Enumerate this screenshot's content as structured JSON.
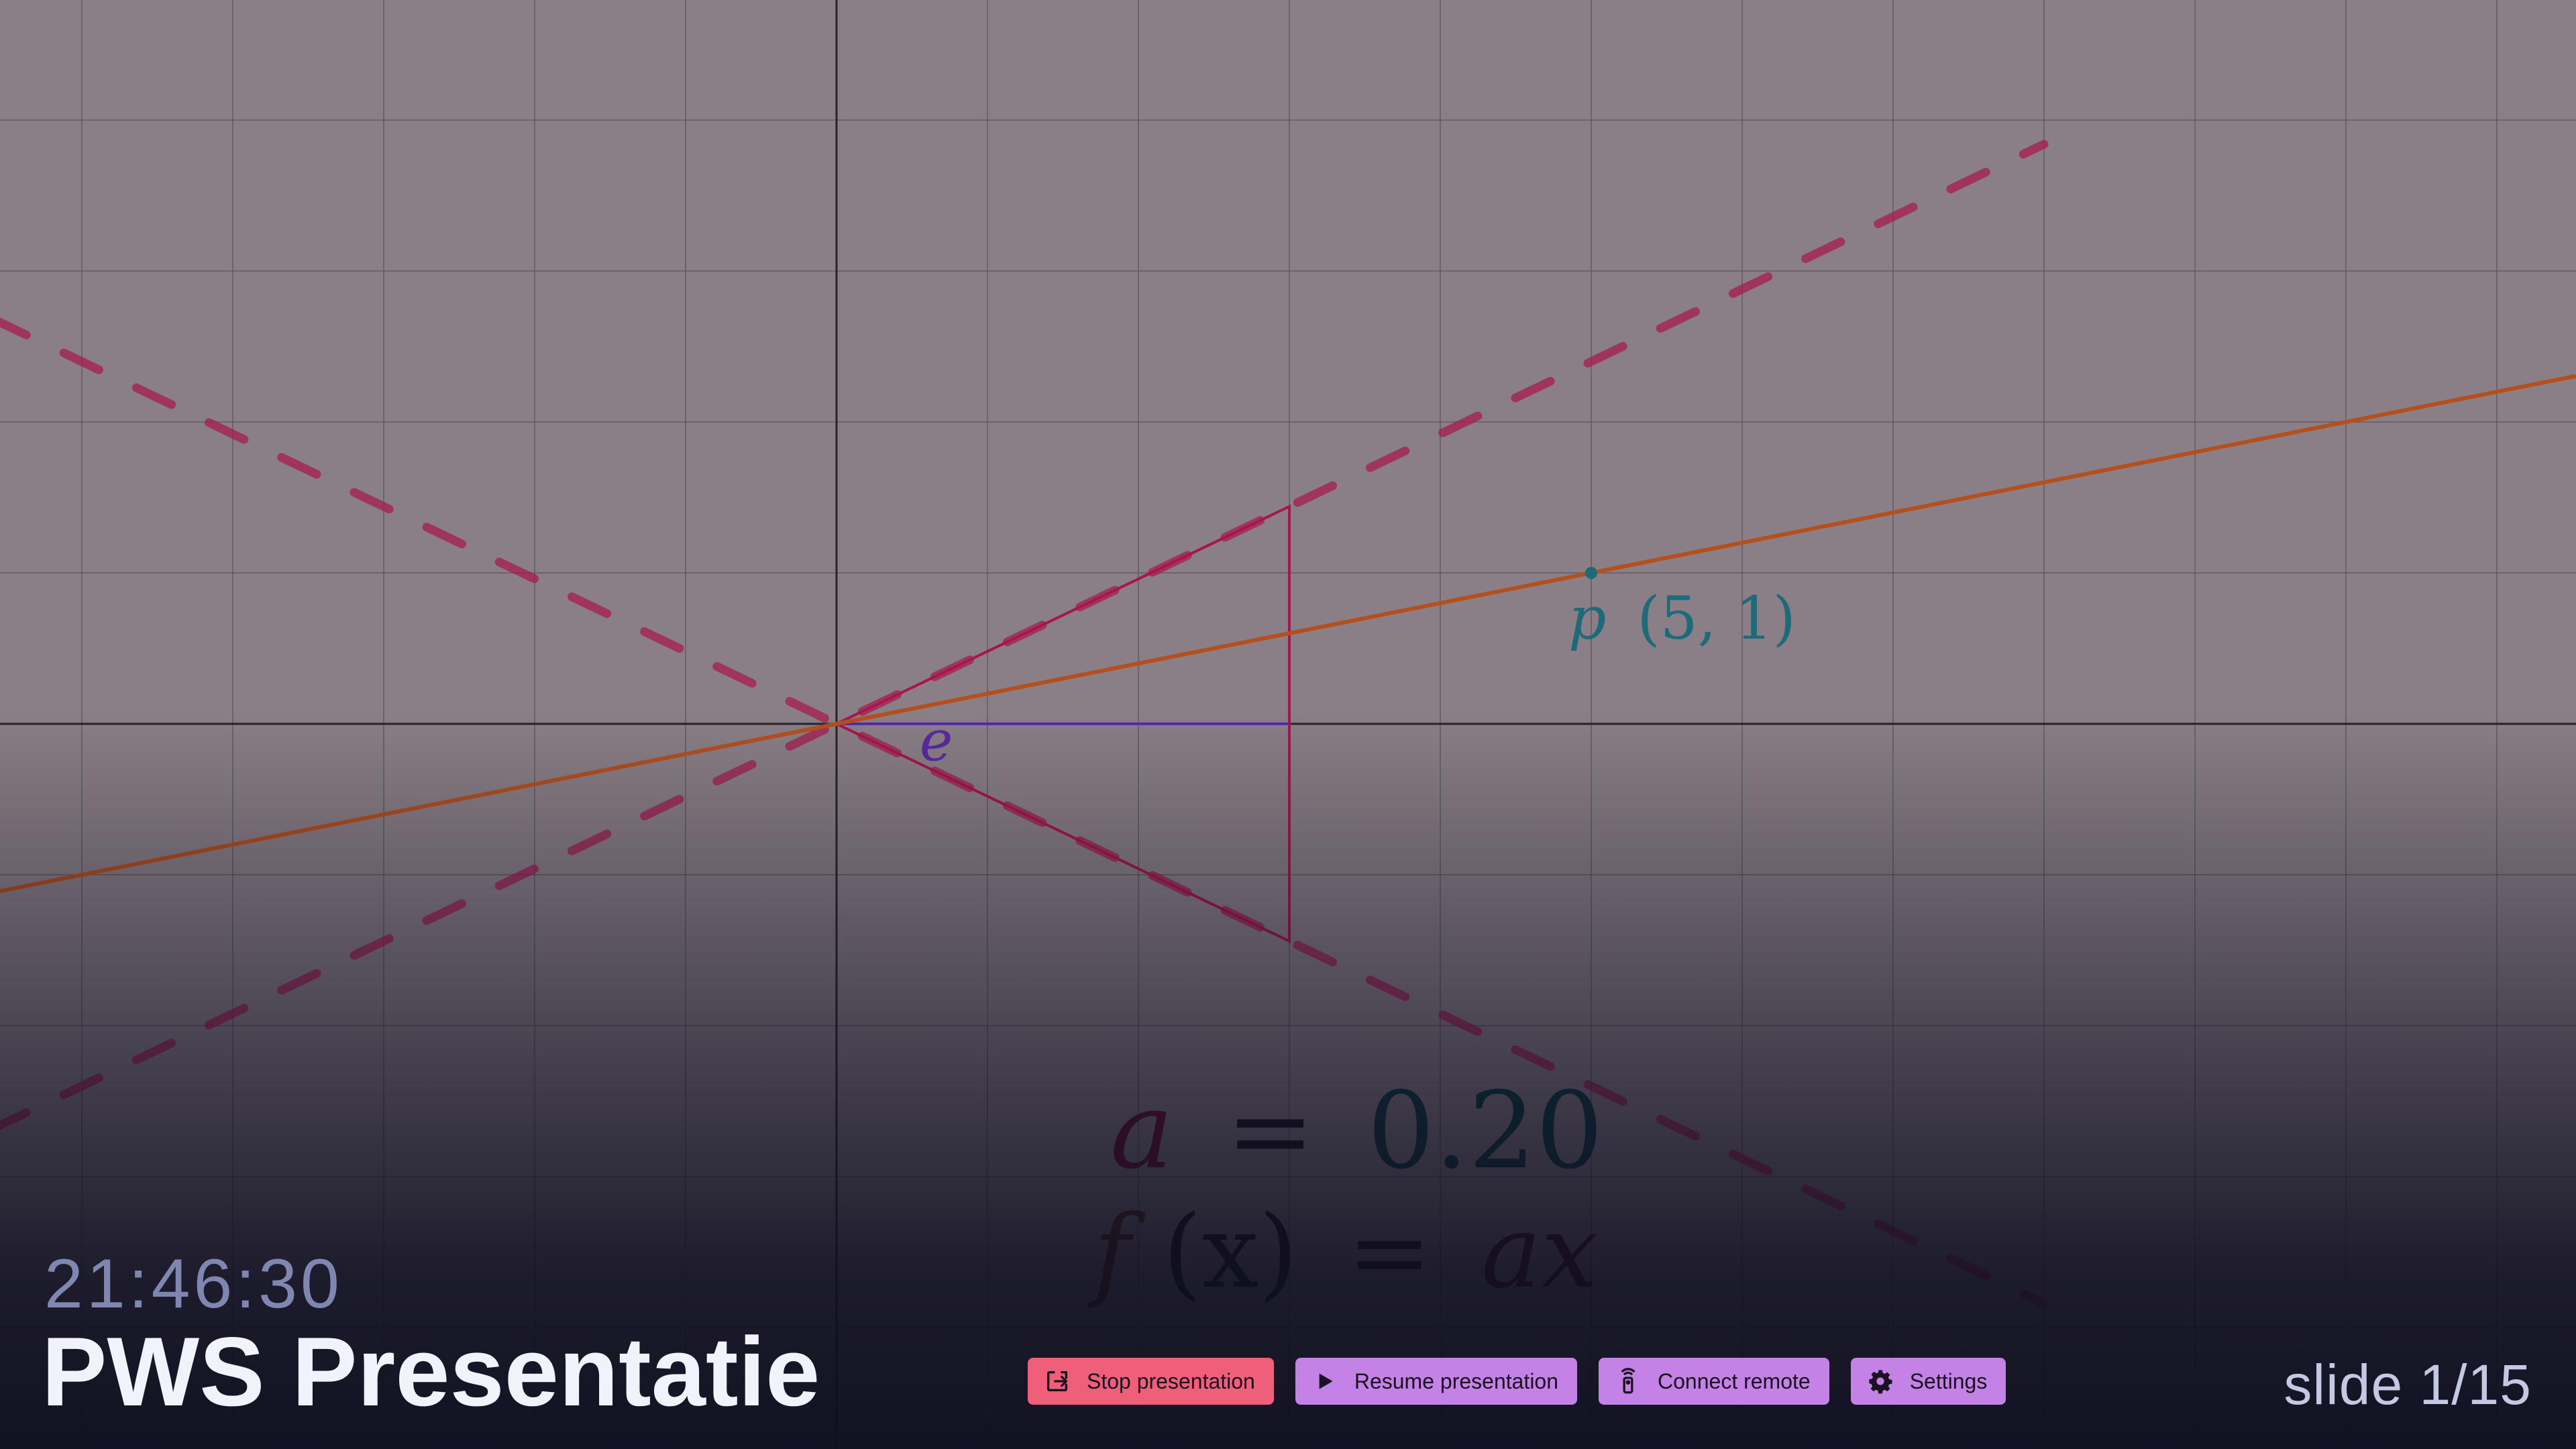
{
  "presentation": {
    "clock": "21:46:30",
    "title": "PWS Presentatie",
    "slide_counter": "slide 1/15"
  },
  "toolbar": {
    "buttons": [
      {
        "label": "Stop presentation",
        "icon": "exit-icon",
        "color": "#ef5f7a"
      },
      {
        "label": "Resume presentation",
        "icon": "play-icon",
        "color": "#c482e6"
      },
      {
        "label": "Connect remote",
        "icon": "remote-icon",
        "color": "#c482e6"
      },
      {
        "label": "Settings",
        "icon": "gear-icon",
        "color": "#c482e6"
      }
    ]
  },
  "slide": {
    "point_p": {
      "name": "p",
      "coords": "(5, 1)",
      "x": 5,
      "y": 1
    },
    "cone_axis_label": "e",
    "formula_a": {
      "name": "a",
      "equals": "=",
      "value": "0.20"
    },
    "formula_f": {
      "lhs": "f",
      "arg": "(x)",
      "equals": "=",
      "rhs": "ax"
    },
    "colors": {
      "line": "#b5501e",
      "cone": "#a8154e",
      "axis_e": "#5a2aa0",
      "point": "#1e6a78",
      "grid": "#5a5258",
      "axis": "#2a2228"
    }
  }
}
